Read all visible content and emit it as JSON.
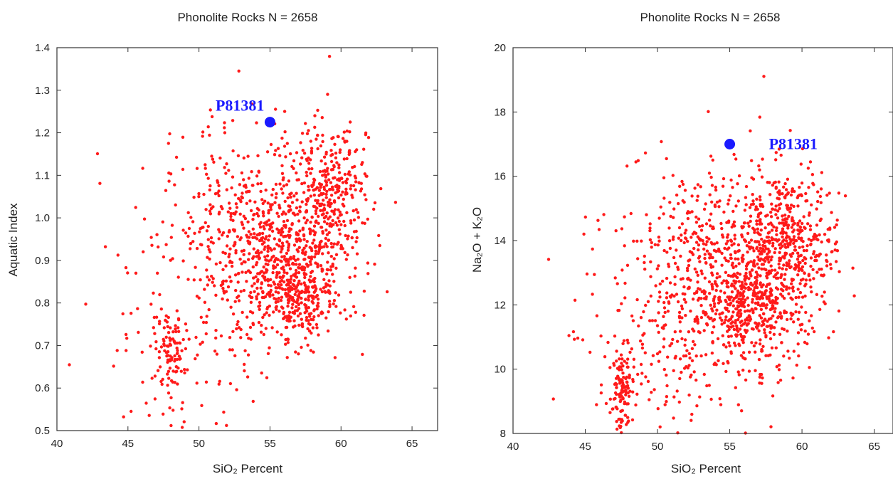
{
  "chart_data": [
    {
      "type": "scatter",
      "title": "Phonolite Rocks N = 2658",
      "xlabel": "SiO₂ Percent",
      "ylabel": "Aquatic Index",
      "xlim": [
        40,
        66.8
      ],
      "ylim": [
        0.5,
        1.4
      ],
      "xticks": [
        40,
        45,
        50,
        55,
        60,
        65
      ],
      "yticks": [
        0.5,
        0.6,
        0.7,
        0.8,
        0.9,
        1.0,
        1.1,
        1.2,
        1.3,
        1.4
      ],
      "ytick_labels": [
        "0.5",
        "0.6",
        "0.7",
        "0.8",
        "0.9",
        "1.0",
        "1.1",
        "1.2",
        "1.3",
        "1.4"
      ],
      "point_color": "#ff1a1a",
      "highlight": {
        "label": "P81381",
        "x": 55.0,
        "y": 1.225,
        "color": "#1a1aff",
        "label_position": "above-left"
      },
      "distribution_note": {
        "n": 1500,
        "seed": 7
      }
    },
    {
      "type": "scatter",
      "title": "Phonolite Rocks N = 2658",
      "xlabel": "SiO₂ Percent",
      "ylabel": "Na₂O + K₂O",
      "xlim": [
        40,
        66.3
      ],
      "ylim": [
        8,
        20
      ],
      "xticks": [
        40,
        45,
        50,
        55,
        60,
        65
      ],
      "yticks": [
        8,
        10,
        12,
        14,
        16,
        18,
        20
      ],
      "ytick_labels": [
        "8",
        "10",
        "12",
        "14",
        "16",
        "18",
        "20"
      ],
      "point_color": "#ff1a1a",
      "highlight": {
        "label": "P81381",
        "x": 55.0,
        "y": 17.0,
        "color": "#1a1aff",
        "label_position": "right"
      },
      "distribution_note": {
        "n": 1600,
        "seed": 11
      }
    }
  ]
}
